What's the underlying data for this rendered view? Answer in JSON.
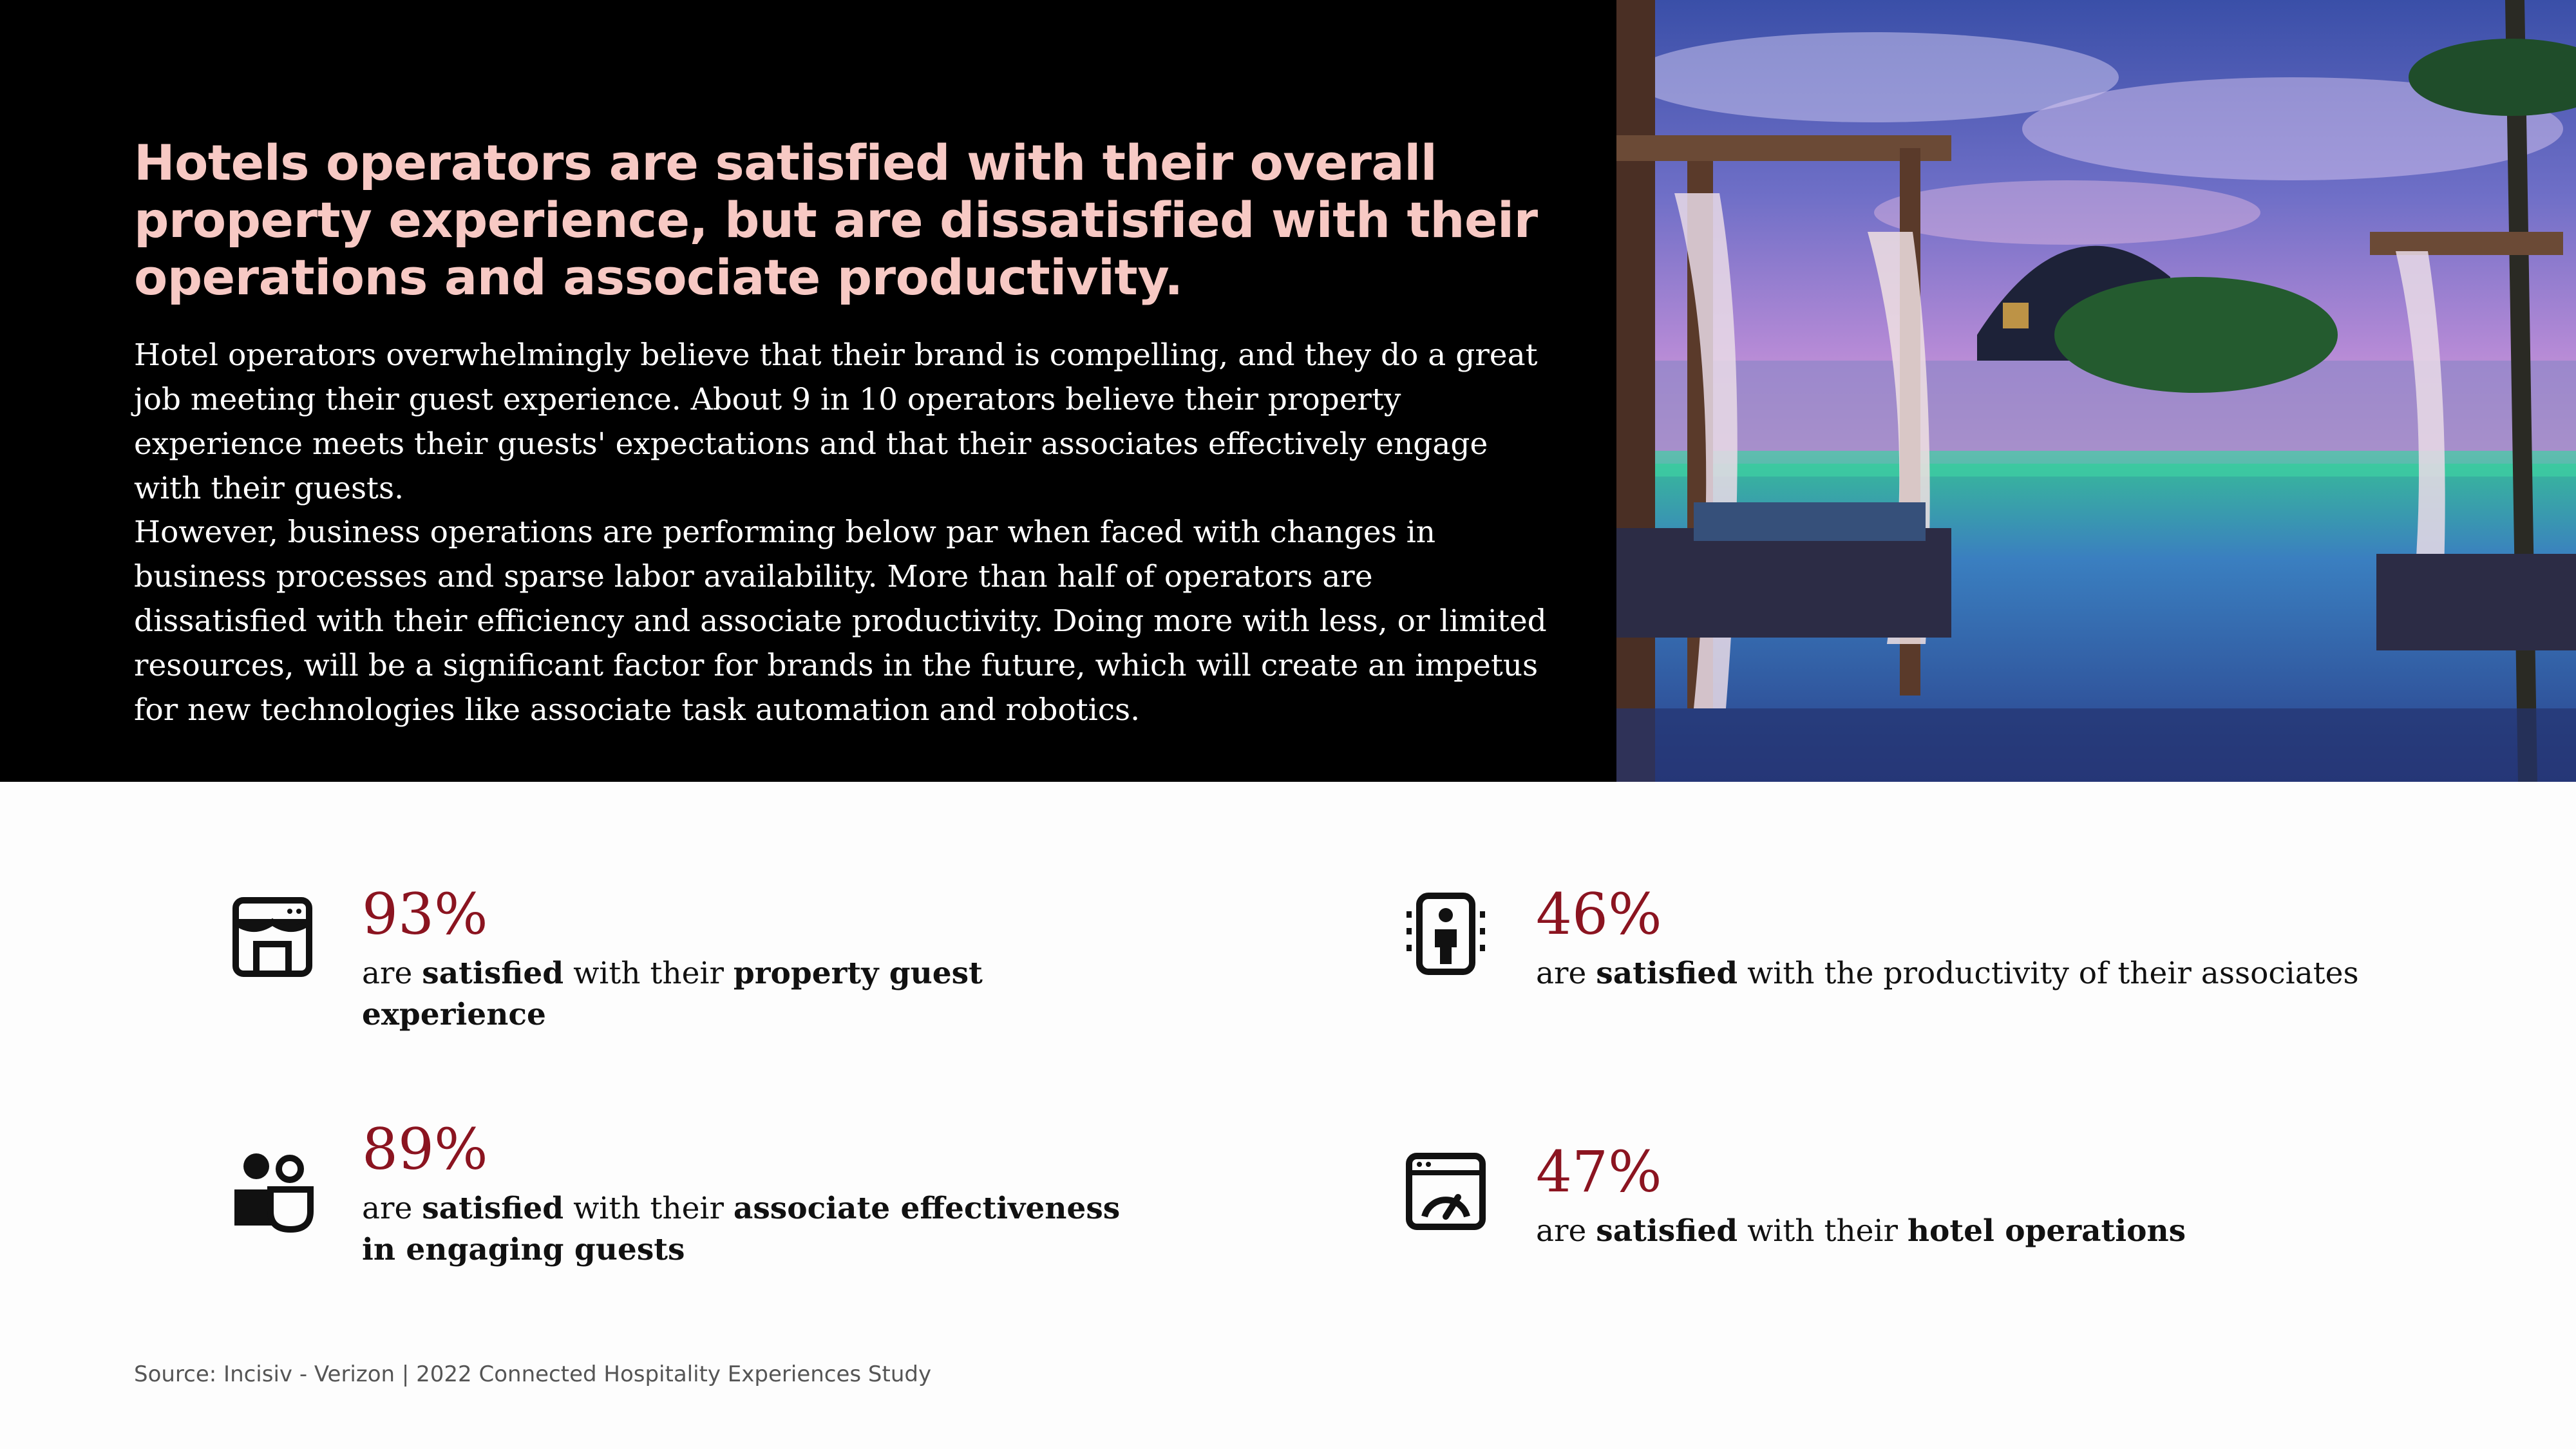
{
  "headline": "Hotels operators are satisfied with their overall property experience, but are dissatisfied with their operations and associate productivity.",
  "paragraphs": [
    "Hotel operators overwhelmingly believe that their brand is compelling, and they do a great job meeting their guest experience. About 9 in 10 operators believe their property experience meets their guests' expectations and that their associates effectively engage with their guests.",
    "However, business operations are performing below par when faced with changes in business processes and sparse labor availability. More than half of operators are dissatisfied with their efficiency and associate productivity. Doing more with less, or limited resources, will be a significant factor for brands in the future, which will create an impetus for new technologies like associate task automation and robotics."
  ],
  "stats": [
    {
      "icon": "storefront-icon",
      "value": "93%",
      "desc": {
        "t1": "are ",
        "b1": "satisfied",
        "t2": " with their ",
        "b2": "property guest  experience",
        "t3": ""
      }
    },
    {
      "icon": "person-scanner-icon",
      "value": "46%",
      "desc": {
        "t1": "are ",
        "b1": "satisfied",
        "t2": " with the productivity of their associates",
        "b2": "",
        "t3": ""
      }
    },
    {
      "icon": "people-icon",
      "value": "89%",
      "desc": {
        "t1": "are ",
        "b1": "satisfied",
        "t2": "  with their ",
        "b2": "associate effectiveness in engaging guests",
        "t3": ""
      }
    },
    {
      "icon": "dashboard-gauge-icon",
      "value": "47%",
      "desc": {
        "t1": "are ",
        "b1": "satisfied",
        "t2": " with their ",
        "b2": "hotel operations",
        "t3": ""
      }
    }
  ],
  "source": "Source: Incisiv - Verizon | 2022 Connected Hospitality Experiences Study",
  "colors": {
    "accent": "#8b1420",
    "headline": "#f7c9c4",
    "hero_bg": "#000000"
  },
  "photo_icon": "resort-pool-photo"
}
